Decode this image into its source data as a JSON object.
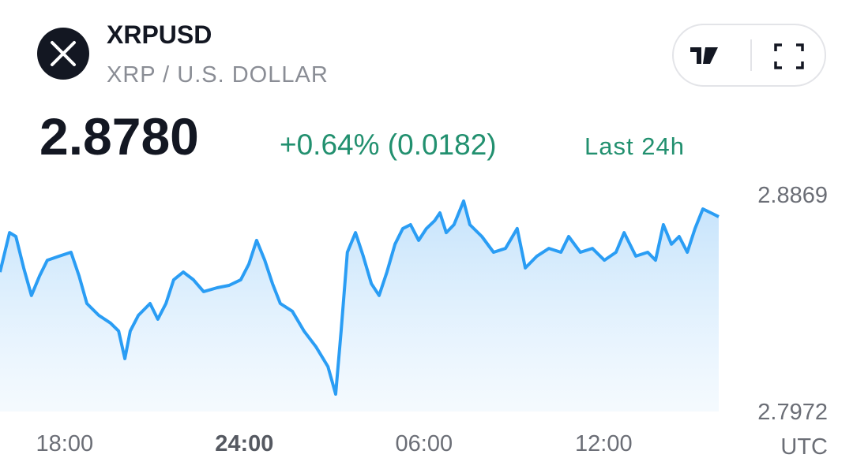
{
  "header": {
    "symbol": "XRPUSD",
    "description": "XRP / U.S. DOLLAR",
    "price": "2.8780",
    "change": "+0.64% (0.0182)",
    "period": "Last 24h"
  },
  "chart_data": {
    "type": "line",
    "color": "#2a9df4",
    "x_label": "UTC",
    "x": [
      16,
      16.32,
      16.53,
      16.79,
      17.05,
      17.32,
      17.58,
      17.98,
      18.37,
      18.64,
      18.9,
      19.3,
      19.69,
      19.96,
      20.17,
      20.35,
      20.62,
      21.01,
      21.27,
      21.54,
      21.8,
      22.12,
      22.46,
      22.8,
      23.25,
      23.65,
      24.04,
      24.31,
      24.57,
      24.84,
      25.1,
      25.36,
      25.76,
      26.15,
      26.55,
      26.95,
      27.21,
      27.39,
      27.6,
      27.87,
      28.13,
      28.4,
      28.66,
      28.92,
      29.19,
      29.45,
      29.71,
      29.98,
      30.24,
      30.51,
      30.69,
      30.9,
      31.16,
      31.48,
      31.69,
      32.09,
      32.48,
      32.88,
      33.27,
      33.54,
      33.93,
      34.33,
      34.73,
      34.99,
      35.38,
      35.78,
      36.18,
      36.57,
      36.84,
      37.23,
      37.63,
      37.89,
      38.15,
      38.42,
      38.68,
      38.95,
      39.21,
      39.47,
      39.74,
      40
    ],
    "values": [
      2.8549,
      2.8712,
      2.8696,
      2.8566,
      2.8452,
      2.8533,
      2.8598,
      2.8615,
      2.8631,
      2.8533,
      2.8419,
      2.837,
      2.8338,
      2.8305,
      2.8191,
      2.8305,
      2.837,
      2.8419,
      2.8354,
      2.8419,
      2.8517,
      2.8549,
      2.8517,
      2.8468,
      2.8484,
      2.8494,
      2.8517,
      2.8582,
      2.868,
      2.8598,
      2.8501,
      2.8419,
      2.8387,
      2.8305,
      2.824,
      2.8158,
      2.8044,
      2.8305,
      2.8631,
      2.8712,
      2.8615,
      2.8501,
      2.8452,
      2.8549,
      2.8664,
      2.8729,
      2.8745,
      2.868,
      2.8729,
      2.8761,
      2.8794,
      2.8712,
      2.8745,
      2.8843,
      2.8745,
      2.8696,
      2.8631,
      2.8647,
      2.8729,
      2.8566,
      2.8615,
      2.8647,
      2.8631,
      2.8696,
      2.8631,
      2.8647,
      2.8598,
      2.8631,
      2.8712,
      2.8615,
      2.8631,
      2.8598,
      2.8745,
      2.8664,
      2.8696,
      2.8631,
      2.8729,
      2.881,
      2.8794,
      2.8778
    ],
    "xlim": [
      16,
      40
    ],
    "xticks": [
      {
        "value": 18,
        "label": "18:00"
      },
      {
        "value": 24,
        "label": "24:00"
      },
      {
        "value": 30,
        "label": "06:00"
      },
      {
        "value": 36,
        "label": "12:00"
      }
    ],
    "ylim": [
      2.7972,
      2.8869
    ],
    "yticks": [
      2.7972,
      2.8869
    ]
  }
}
